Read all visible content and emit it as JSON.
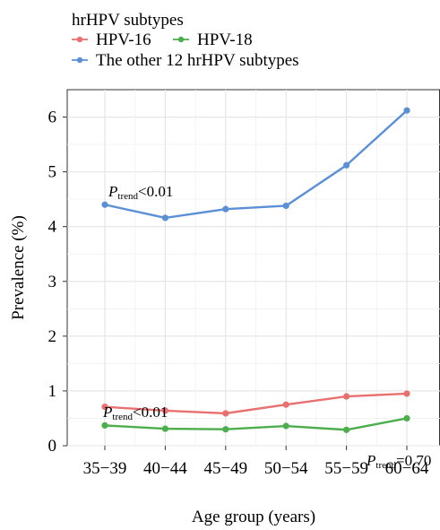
{
  "chart_data": {
    "type": "line",
    "xlabel": "Age group (years)",
    "ylabel": "Prevalence (%)",
    "ylim": [
      0,
      6.5
    ],
    "yticks": [
      0,
      1,
      2,
      3,
      4,
      5,
      6
    ],
    "grid": true,
    "legend": {
      "title": "hrHPV subtypes",
      "placement": "top-left, outside plot"
    },
    "categories": [
      "35−39",
      "40−44",
      "45−49",
      "50−54",
      "55−59",
      "60−64"
    ],
    "series": [
      {
        "name": "HPV-16",
        "color": "#e8706f",
        "values": [
          0.71,
          0.64,
          0.59,
          0.75,
          0.9,
          0.95
        ]
      },
      {
        "name": "HPV-18",
        "color": "#4cae4c",
        "values": [
          0.37,
          0.31,
          0.3,
          0.36,
          0.29,
          0.5
        ]
      },
      {
        "name": "The other 12 hrHPV subtypes",
        "color": "#5b8fd6",
        "values": [
          4.4,
          4.16,
          4.32,
          4.38,
          5.12,
          6.12
        ]
      }
    ],
    "annotations": [
      {
        "series": "The other 12 hrHPV subtypes",
        "letter": "P",
        "sub": "trend",
        "rest": "<0.01"
      },
      {
        "series": "HPV-16",
        "letter": "P",
        "sub": "trend",
        "rest": "<0.01"
      },
      {
        "series": "HPV-18",
        "letter": "P",
        "sub": "trend",
        "rest": "=0.70"
      }
    ]
  }
}
